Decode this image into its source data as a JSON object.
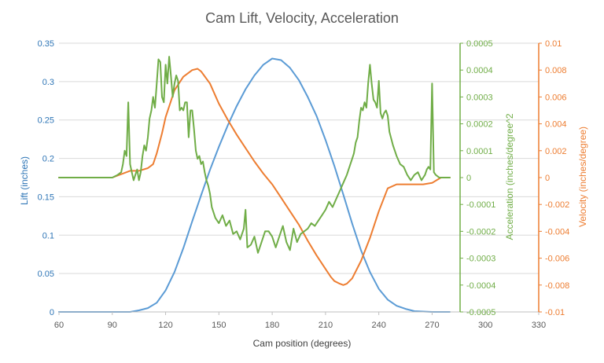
{
  "chart_data": {
    "type": "line",
    "title": "Cam Lift, Velocity, Acceleration",
    "xlabel": "Cam position (degrees)",
    "xlim": [
      60,
      330
    ],
    "x_ticks": [
      "60",
      "90",
      "120",
      "150",
      "180",
      "210",
      "240",
      "270",
      "300",
      "330"
    ],
    "axes": {
      "lift": {
        "label": "Lift (inches)",
        "ylim": [
          0,
          0.35
        ],
        "ticks": [
          "0",
          "0.05",
          "0.1",
          "0.15",
          "0.2",
          "0.25",
          "0.3",
          "0.35"
        ],
        "color": "#2e75b6"
      },
      "acceleration": {
        "label": "Acceleration (inches/degree^2",
        "ylim": [
          -0.0005,
          0.0005
        ],
        "ticks": [
          "-0.0005",
          "-0.0004",
          "-0.0003",
          "-0.0002",
          "-0.0001",
          "0",
          "0.0001",
          "0.0002",
          "0.0003",
          "0.0004",
          "0.0005"
        ],
        "color": "#70ad47"
      },
      "velocity": {
        "label": "Velocity (inches/degree)",
        "ylim": [
          -0.01,
          0.01
        ],
        "ticks": [
          "-0.01",
          "-0.008",
          "-0.006",
          "-0.004",
          "-0.002",
          "0",
          "0.002",
          "0.004",
          "0.006",
          "0.008",
          "0.01"
        ],
        "color": "#ed7d31"
      }
    },
    "series": [
      {
        "name": "Lift",
        "axis": "lift",
        "color": "#5b9bd5",
        "x": [
          60,
          90,
          100,
          105,
          110,
          115,
          120,
          125,
          130,
          135,
          140,
          145,
          150,
          155,
          160,
          165,
          170,
          175,
          180,
          185,
          190,
          195,
          200,
          205,
          210,
          215,
          220,
          225,
          230,
          235,
          240,
          245,
          250,
          255,
          260,
          270,
          280
        ],
        "y": [
          0,
          0,
          0,
          0.002,
          0.005,
          0.012,
          0.028,
          0.052,
          0.083,
          0.118,
          0.152,
          0.185,
          0.215,
          0.243,
          0.268,
          0.29,
          0.308,
          0.322,
          0.33,
          0.328,
          0.318,
          0.302,
          0.28,
          0.255,
          0.224,
          0.19,
          0.153,
          0.115,
          0.08,
          0.052,
          0.03,
          0.016,
          0.008,
          0.004,
          0.001,
          0,
          0
        ]
      },
      {
        "name": "Velocity",
        "axis": "velocity",
        "color": "#ed7d31",
        "x": [
          60,
          90,
          100,
          105,
          110,
          113,
          115,
          118,
          120,
          125,
          130,
          135,
          138,
          140,
          145,
          150,
          155,
          160,
          165,
          170,
          175,
          180,
          185,
          190,
          195,
          200,
          205,
          210,
          213,
          215,
          218,
          220,
          222,
          225,
          230,
          235,
          240,
          245,
          250,
          255,
          260,
          265,
          270,
          275,
          280
        ],
        "y": [
          0,
          0,
          0.0005,
          0.0005,
          0.0007,
          0.001,
          0.0018,
          0.0033,
          0.0045,
          0.0065,
          0.0075,
          0.008,
          0.0081,
          0.0079,
          0.007,
          0.0055,
          0.0043,
          0.0032,
          0.0022,
          0.0012,
          0.0003,
          -0.0005,
          -0.0015,
          -0.0025,
          -0.0035,
          -0.0047,
          -0.0058,
          -0.0068,
          -0.0074,
          -0.0077,
          -0.0079,
          -0.008,
          -0.0079,
          -0.0075,
          -0.0062,
          -0.0045,
          -0.0025,
          -0.0008,
          -0.0005,
          -0.0005,
          -0.0005,
          -0.0005,
          -0.0004,
          0,
          0
        ]
      },
      {
        "name": "Acceleration",
        "axis": "acceleration",
        "color": "#70ad47",
        "x": [
          60,
          90,
          93,
          95,
          96,
          97,
          98,
          99,
          100,
          101,
          102,
          103,
          104,
          105,
          106,
          107,
          108,
          109,
          110,
          111,
          112,
          113,
          114,
          115,
          116,
          117,
          118,
          119,
          120,
          121,
          122,
          123,
          124,
          125,
          126,
          127,
          128,
          129,
          130,
          131,
          132,
          133,
          134,
          135,
          136,
          137,
          138,
          139,
          140,
          141,
          142,
          143,
          144,
          145,
          146,
          148,
          150,
          152,
          154,
          156,
          158,
          160,
          162,
          164,
          165,
          166,
          168,
          170,
          172,
          174,
          176,
          178,
          180,
          182,
          184,
          186,
          188,
          190,
          192,
          194,
          196,
          198,
          200,
          202,
          204,
          206,
          208,
          210,
          212,
          214,
          216,
          218,
          220,
          222,
          224,
          225,
          226,
          227,
          228,
          229,
          230,
          231,
          232,
          233,
          234,
          235,
          236,
          237,
          238,
          239,
          240,
          241,
          242,
          243,
          244,
          245,
          246,
          248,
          250,
          252,
          254,
          256,
          258,
          260,
          262,
          264,
          266,
          267,
          268,
          269,
          270,
          271,
          272,
          274,
          280
        ],
        "y": [
          0,
          0,
          1e-05,
          2e-05,
          5e-05,
          0.0001,
          8e-05,
          0.00028,
          5e-05,
          2e-05,
          -1e-05,
          1e-05,
          3e-05,
          -1e-05,
          2e-05,
          8e-05,
          0.00012,
          0.0001,
          0.00015,
          0.00022,
          0.00025,
          0.0003,
          0.00026,
          0.00035,
          0.00044,
          0.00043,
          0.0003,
          0.00028,
          0.00042,
          0.00035,
          0.00045,
          0.00038,
          0.0003,
          0.00035,
          0.00038,
          0.00036,
          0.00025,
          0.00026,
          0.00025,
          0.00028,
          0.00028,
          0.00015,
          0.00025,
          0.00025,
          0.00018,
          0.0001,
          7e-05,
          8e-05,
          5e-05,
          6e-05,
          2e-05,
          -1e-05,
          -3e-05,
          -6e-05,
          -0.00011,
          -0.00015,
          -0.00017,
          -0.00014,
          -0.00018,
          -0.00016,
          -0.00021,
          -0.0002,
          -0.00023,
          -0.00019,
          -0.00012,
          -0.00026,
          -0.00025,
          -0.00022,
          -0.00028,
          -0.00024,
          -0.0002,
          -0.0002,
          -0.00022,
          -0.00026,
          -0.00022,
          -0.00018,
          -0.00024,
          -0.00027,
          -0.00019,
          -0.00024,
          -0.00021,
          -0.0002,
          -0.00019,
          -0.00017,
          -0.00018,
          -0.00016,
          -0.00014,
          -0.00012,
          -9e-05,
          -0.00011,
          -8e-05,
          -5e-05,
          -2e-05,
          1e-05,
          5e-05,
          7e-05,
          9e-05,
          0.00013,
          0.00015,
          0.00021,
          0.00026,
          0.00025,
          0.00028,
          0.00026,
          0.00035,
          0.00042,
          0.00035,
          0.00029,
          0.00028,
          0.00026,
          0.00036,
          0.00024,
          0.00022,
          0.00024,
          0.00025,
          0.00023,
          0.00017,
          0.00012,
          8e-05,
          5e-05,
          4e-05,
          1e-05,
          -1e-05,
          1e-05,
          2e-05,
          -1e-05,
          1e-05,
          3e-05,
          4e-05,
          3e-05,
          0.00035,
          2e-05,
          1e-05,
          0.0,
          0
        ]
      }
    ]
  }
}
